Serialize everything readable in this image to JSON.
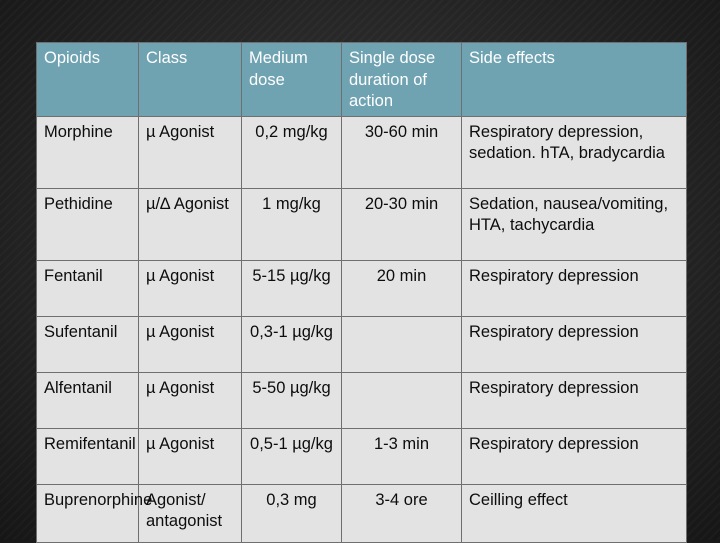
{
  "table": {
    "headers": [
      "Opioids",
      "Class",
      "Medium dose",
      "Single dose duration of action",
      "Side effects"
    ],
    "rows": [
      [
        "Morphine",
        "µ Agonist",
        "0,2 mg/kg",
        "30-60 min",
        "Respiratory depression, sedation. hTA, bradycardia"
      ],
      [
        "Pethidine",
        "µ/∆ Agonist",
        "1 mg/kg",
        "20-30 min",
        "Sedation, nausea/vomiting, HTA, tachycardia"
      ],
      [
        "Fentanil",
        "µ Agonist",
        "5-15 µg/kg",
        "20 min",
        "Respiratory depression"
      ],
      [
        "Sufentanil",
        "µ Agonist",
        "0,3-1 µg/kg",
        "",
        "Respiratory depression"
      ],
      [
        "Alfentanil",
        "µ Agonist",
        "5-50 µg/kg",
        "",
        "Respiratory depression"
      ],
      [
        "Remifentanil",
        "µ Agonist",
        "0,5-1 µg/kg",
        "1-3 min",
        "Respiratory depression"
      ],
      [
        "Buprenorphine",
        "Agonist/ antagonist",
        "0,3 mg",
        "3-4 ore",
        "Ceilling effect"
      ]
    ]
  },
  "colors": {
    "header_bg": "#6fa3b2",
    "cell_bg": "#e3e3e3",
    "background": "#262626"
  }
}
